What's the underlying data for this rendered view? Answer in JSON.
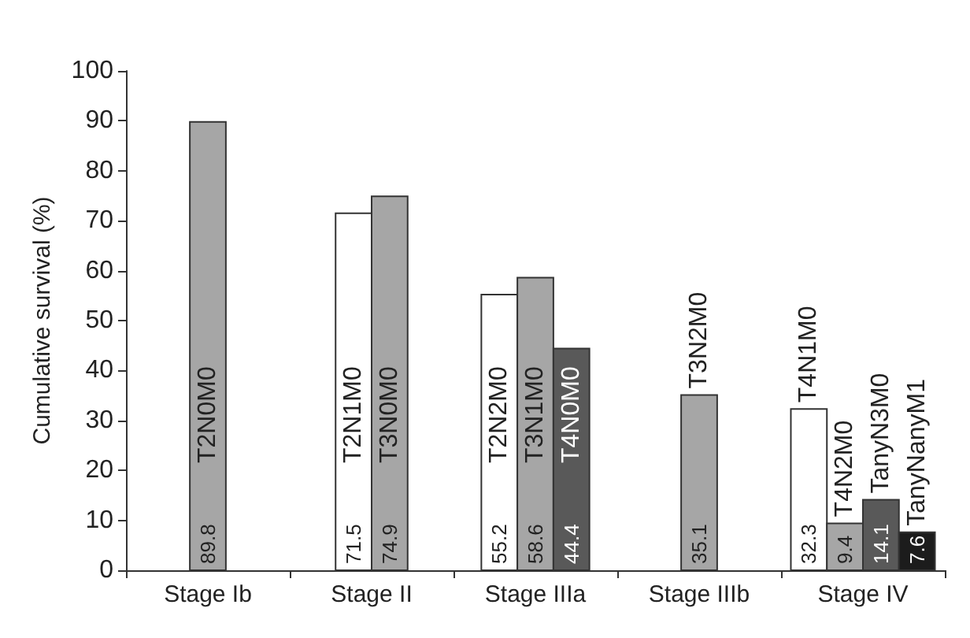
{
  "chart_data": {
    "type": "bar",
    "ylabel": "Cumulative survival (%)",
    "categories": [
      "Stage Ib",
      "Stage II",
      "Stage IIIa",
      "Stage IIIb",
      "Stage IV"
    ],
    "series": [
      {
        "name": "T2N0M0",
        "color": "#a6a6a6",
        "values": [
          89.8,
          null,
          null,
          null,
          null
        ]
      },
      {
        "name": "T2N1M0",
        "color": "#ffffff",
        "values": [
          null,
          71.5,
          null,
          null,
          null
        ]
      },
      {
        "name": "T3N0M0",
        "color": "#a6a6a6",
        "values": [
          null,
          74.9,
          null,
          null,
          null
        ]
      },
      {
        "name": "T2N2M0",
        "color": "#ffffff",
        "values": [
          null,
          null,
          55.2,
          null,
          null
        ]
      },
      {
        "name": "T3N1M0",
        "color": "#a6a6a6",
        "values": [
          null,
          null,
          58.6,
          null,
          null
        ]
      },
      {
        "name": "T4N0M0",
        "color": "#595959",
        "values": [
          null,
          null,
          44.4,
          null,
          null
        ]
      },
      {
        "name": "T3N2M0",
        "color": "#a6a6a6",
        "values": [
          null,
          null,
          null,
          35.1,
          null
        ]
      },
      {
        "name": "T4N1M0",
        "color": "#ffffff",
        "values": [
          null,
          null,
          null,
          null,
          32.3
        ]
      },
      {
        "name": "T4N2M0",
        "color": "#a6a6a6",
        "values": [
          null,
          null,
          null,
          null,
          9.4
        ]
      },
      {
        "name": "TanyN3M0",
        "color": "#595959",
        "values": [
          null,
          null,
          null,
          null,
          14.1
        ]
      },
      {
        "name": "TanyNanyM1",
        "color": "#1c1c1c",
        "values": [
          null,
          null,
          null,
          null,
          7.6
        ]
      }
    ],
    "ylim": [
      0,
      100
    ],
    "yticks": [
      0,
      10,
      20,
      30,
      40,
      50,
      60,
      70,
      80,
      90,
      100
    ],
    "data_labels": true,
    "grid": false,
    "legend": false
  }
}
